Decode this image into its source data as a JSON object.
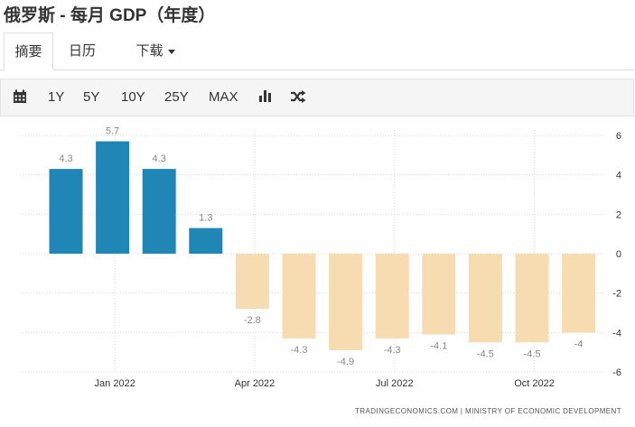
{
  "page": {
    "title": "俄罗斯 - 每月 GDP（年度）"
  },
  "tabs": [
    {
      "label": "摘要",
      "active": true
    },
    {
      "label": "日历",
      "active": false
    },
    {
      "label": "下载",
      "active": false
    }
  ],
  "toolbar": {
    "calendar_icon": "calendar-icon",
    "ranges": [
      "1Y",
      "5Y",
      "10Y",
      "25Y",
      "MAX"
    ],
    "bar_chart_icon": "bar-chart-icon",
    "shuffle_icon": "shuffle-icon"
  },
  "chart_data": {
    "type": "bar",
    "categories": [
      "Dec 2021",
      "Jan 2022",
      "Feb 2022",
      "Mar 2022",
      "Apr 2022",
      "May 2022",
      "Jun 2022",
      "Jul 2022",
      "Aug 2022",
      "Sep 2022",
      "Oct 2022",
      "Nov 2022"
    ],
    "values": [
      4.3,
      5.7,
      4.3,
      1.3,
      -2.8,
      -4.3,
      -4.9,
      -4.3,
      -4.1,
      -4.5,
      -4.5,
      -4
    ],
    "value_labels": [
      "4.3",
      "5.7",
      "4.3",
      "1.3",
      "-2.8",
      "-4.3",
      "-4.9",
      "-4.3",
      "-4.1",
      "-4.5",
      "-4.5",
      "-4"
    ],
    "ylim": [
      -6,
      6
    ],
    "y_ticks": [
      6,
      4,
      2,
      0,
      -2,
      -4,
      -6
    ],
    "x_tick_labels": [
      {
        "label": "Jan 2022",
        "index": 1
      },
      {
        "label": "Apr 2022",
        "index": 4
      },
      {
        "label": "Jul 2022",
        "index": 7
      },
      {
        "label": "Oct 2022",
        "index": 10
      }
    ],
    "positive_color": "#1f86b6",
    "negative_color": "#f7dcb1",
    "grid": true,
    "y_axis_side": "right",
    "source": "TRADINGECONOMICS.COM  |  MINISTRY OF ECONOMIC DEVELOPMENT"
  }
}
